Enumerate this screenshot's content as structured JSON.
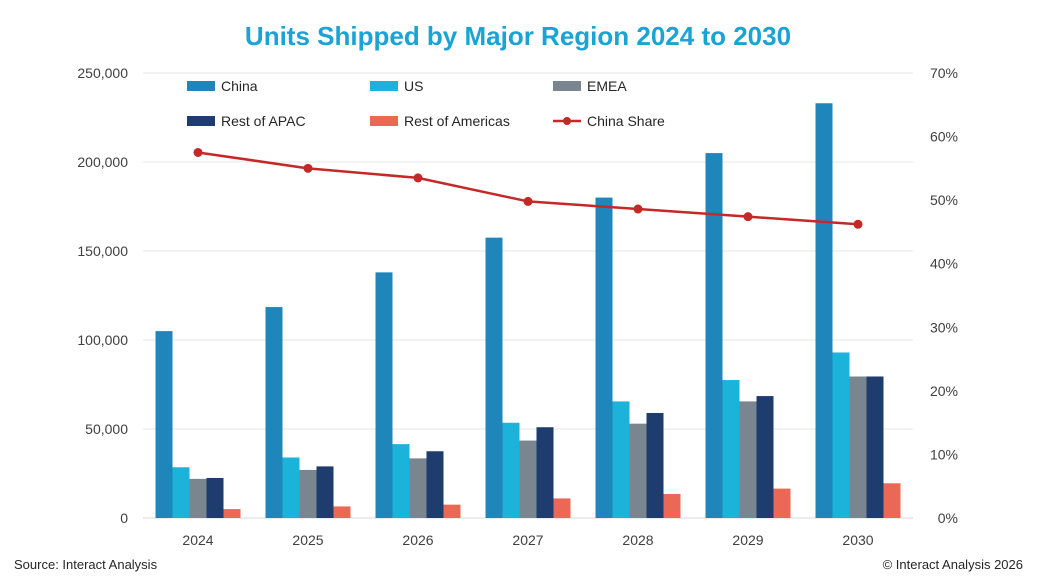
{
  "chart_data": {
    "type": "bar",
    "title": "Units Shipped by Major Region 2024 to 2030",
    "categories": [
      "2024",
      "2025",
      "2026",
      "2027",
      "2028",
      "2029",
      "2030"
    ],
    "y_left": {
      "min": 0,
      "max": 250000,
      "step": 50000,
      "tick_labels": [
        "0",
        "50,000",
        "100,000",
        "150,000",
        "200,000",
        "250,000"
      ]
    },
    "y_right": {
      "min": 0,
      "max": 70,
      "step": 10,
      "tick_labels": [
        "0%",
        "10%",
        "20%",
        "30%",
        "40%",
        "50%",
        "60%",
        "70%"
      ]
    },
    "grid": true,
    "legend_position": "top",
    "series": [
      {
        "name": "China",
        "type": "bar",
        "axis": "left",
        "color": "#1f86bb",
        "values": [
          105000,
          118500,
          138000,
          157500,
          180000,
          205000,
          233000
        ]
      },
      {
        "name": "US",
        "type": "bar",
        "axis": "left",
        "color": "#1cb3da",
        "values": [
          28500,
          34000,
          41500,
          53500,
          65500,
          77500,
          93000
        ]
      },
      {
        "name": "EMEA",
        "type": "bar",
        "axis": "left",
        "color": "#7a868f",
        "values": [
          22000,
          27000,
          33500,
          43500,
          53000,
          65500,
          79500
        ]
      },
      {
        "name": "Rest of APAC",
        "type": "bar",
        "axis": "left",
        "color": "#1f3c6e",
        "values": [
          22500,
          29000,
          37500,
          51000,
          59000,
          68500,
          79500
        ]
      },
      {
        "name": "Rest of Americas",
        "type": "bar",
        "axis": "left",
        "color": "#ec6856",
        "values": [
          5000,
          6500,
          7500,
          11000,
          13500,
          16500,
          19500
        ]
      },
      {
        "name": "China Share",
        "type": "line",
        "axis": "right",
        "color": "#c62828",
        "values": [
          57.5,
          55.0,
          53.5,
          49.8,
          48.6,
          47.4,
          46.2
        ]
      }
    ]
  },
  "colors": {
    "title": "#1aa3d4",
    "grid": "#e6e6e6"
  },
  "footer": {
    "source": "Source: Interact Analysis",
    "copyright": "© Interact Analysis 2026"
  }
}
